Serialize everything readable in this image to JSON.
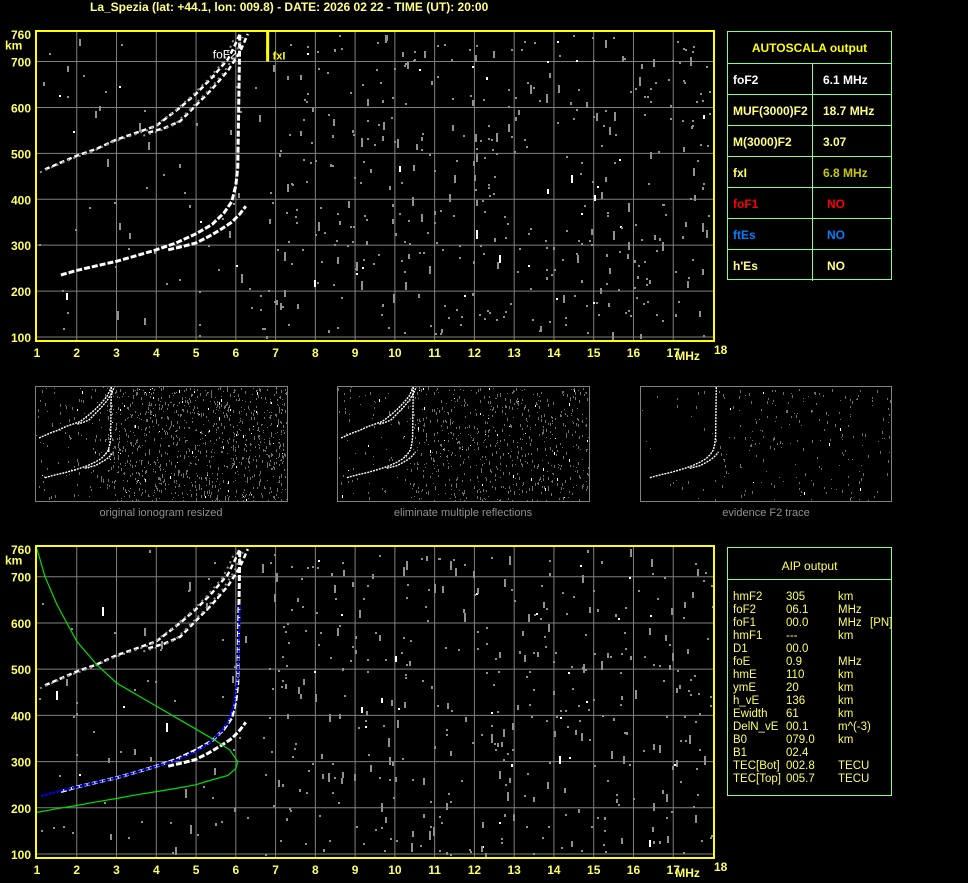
{
  "header": {
    "title": "La_Spezia (lat: +44.1, lon: 009.8) - DATE: 2026 02 22 - TIME (UT): 20:00"
  },
  "colors": {
    "axis": "#ffff00",
    "grid": "#808080",
    "table_border": "#80ff80",
    "profile": "#00e000",
    "fit": "#0000ff",
    "fof1": "#ff0000",
    "ftes": "#0080ff",
    "fxl": "#c0c000"
  },
  "autoscala": {
    "title": "AUTOSCALA output",
    "rows": [
      {
        "label": "foF2",
        "value": "6.1 MHz",
        "color": "#ffffff"
      },
      {
        "label": "MUF(3000)F2",
        "value": "18.7 MHz",
        "color": "#ffff80"
      },
      {
        "label": "M(3000)F2",
        "value": "3.07",
        "color": "#ffff80"
      },
      {
        "label": "fxI",
        "value": "6.8 MHz",
        "color": "#c8c800"
      },
      {
        "label": "foF1",
        "value": "NO",
        "color": "#ff0000"
      },
      {
        "label": "ftEs",
        "value": "NO",
        "color": "#0080ff"
      },
      {
        "label": "h'Es",
        "value": "NO",
        "color": "#ffff80"
      }
    ]
  },
  "aip": {
    "title": "AIP output",
    "rows": [
      {
        "name": "hmF2",
        "value": "305",
        "unit": "km",
        "note": ""
      },
      {
        "name": "foF2",
        "value": "06.1",
        "unit": "MHz",
        "note": ""
      },
      {
        "name": "foF1",
        "value": "00.0",
        "unit": "MHz",
        "note": "[PN]"
      },
      {
        "name": "hmF1",
        "value": "---",
        "unit": "km",
        "note": ""
      },
      {
        "name": "D1",
        "value": "00.0",
        "unit": "",
        "note": ""
      },
      {
        "name": "foE",
        "value": "0.9",
        "unit": "MHz",
        "note": ""
      },
      {
        "name": "hmE",
        "value": "110",
        "unit": "km",
        "note": ""
      },
      {
        "name": "ymE",
        "value": "20",
        "unit": "km",
        "note": ""
      },
      {
        "name": "h_vE",
        "value": "136",
        "unit": "km",
        "note": ""
      },
      {
        "name": "Ewidth",
        "value": "61",
        "unit": "km",
        "note": ""
      },
      {
        "name": "DelN_vE",
        "value": "00.1",
        "unit": "m^(-3)",
        "note": ""
      },
      {
        "name": "B0",
        "value": "079.0",
        "unit": "km",
        "note": ""
      },
      {
        "name": "B1",
        "value": "02.4",
        "unit": "",
        "note": ""
      },
      {
        "name": "TEC[Bot]",
        "value": "002.8",
        "unit": "TECU",
        "note": ""
      },
      {
        "name": "TEC[Top]",
        "value": "005.7",
        "unit": "TECU",
        "note": ""
      }
    ]
  },
  "thumbnails": [
    {
      "caption": "original ionogram resized"
    },
    {
      "caption": "eliminate multiple reflections"
    },
    {
      "caption": "evidence F2 trace"
    }
  ],
  "chart_data": [
    {
      "type": "scatter",
      "title": "",
      "xlabel": "MHz",
      "ylabel": "km",
      "xlim": [
        1,
        18
      ],
      "ylim": [
        100,
        760
      ],
      "xticks": [
        "1",
        "2",
        "3",
        "4",
        "5",
        "6",
        "7",
        "8",
        "9",
        "10",
        "11",
        "12",
        "13",
        "14",
        "15",
        "16",
        "17",
        "18"
      ],
      "yticks": [
        "100",
        "200",
        "300",
        "400",
        "500",
        "600",
        "700",
        "760"
      ],
      "grid": true,
      "annotations": [
        {
          "text": "foF2",
          "x": 6.1
        },
        {
          "text": "fxI",
          "x": 6.8
        }
      ],
      "series": [
        {
          "kind": "o-trace",
          "x": [
            1.6,
            2,
            2.5,
            3,
            3.5,
            4,
            4.5,
            5,
            5.4,
            5.7,
            5.9,
            6.0,
            6.05,
            6.1
          ],
          "y": [
            235,
            245,
            255,
            265,
            277,
            290,
            305,
            325,
            345,
            370,
            395,
            430,
            470,
            760
          ]
        },
        {
          "kind": "x-trace",
          "x": [
            4.3,
            4.7,
            5,
            5.3,
            5.6,
            5.9,
            6.1,
            6.25
          ],
          "y": [
            290,
            298,
            305,
            318,
            333,
            350,
            368,
            385
          ]
        },
        {
          "kind": "o-trace-2hop",
          "x": [
            1.2,
            1.6,
            2,
            2.5,
            3,
            3.5,
            4,
            4.3,
            4.6,
            5,
            5.4,
            5.8,
            6.0,
            6.1
          ],
          "y": [
            465,
            480,
            495,
            510,
            530,
            545,
            560,
            580,
            600,
            630,
            665,
            705,
            740,
            760
          ]
        },
        {
          "kind": "x-trace-2hop",
          "x": [
            3.8,
            4.2,
            4.6,
            5,
            5.4,
            5.8,
            6.1,
            6.3
          ],
          "y": [
            545,
            555,
            570,
            605,
            640,
            680,
            720,
            760
          ]
        }
      ]
    },
    {
      "type": "scatter",
      "title": "",
      "xlabel": "MHz",
      "ylabel": "km",
      "xlim": [
        1,
        18
      ],
      "ylim": [
        100,
        760
      ],
      "xticks": [
        "1",
        "2",
        "3",
        "4",
        "5",
        "6",
        "7",
        "8",
        "9",
        "10",
        "11",
        "12",
        "13",
        "14",
        "15",
        "16",
        "17",
        "18"
      ],
      "yticks": [
        "100",
        "200",
        "300",
        "400",
        "500",
        "600",
        "700",
        "760"
      ],
      "grid": true,
      "series": [
        {
          "kind": "o-trace",
          "x": [
            1.6,
            2,
            2.5,
            3,
            3.5,
            4,
            4.5,
            5,
            5.4,
            5.7,
            5.9,
            6.0,
            6.05,
            6.1
          ],
          "y": [
            235,
            245,
            255,
            265,
            277,
            290,
            305,
            325,
            345,
            370,
            395,
            430,
            470,
            760
          ]
        },
        {
          "kind": "x-trace",
          "x": [
            4.3,
            4.7,
            5,
            5.3,
            5.6,
            5.9,
            6.1,
            6.25
          ],
          "y": [
            290,
            298,
            305,
            318,
            333,
            350,
            368,
            385
          ]
        },
        {
          "kind": "o-trace-2hop",
          "x": [
            1.2,
            1.6,
            2,
            2.5,
            3,
            3.5,
            4,
            4.3,
            4.6,
            5,
            5.4,
            5.8,
            6.0,
            6.1
          ],
          "y": [
            465,
            480,
            495,
            510,
            530,
            545,
            560,
            580,
            600,
            630,
            665,
            705,
            740,
            760
          ]
        },
        {
          "kind": "x-trace-2hop",
          "x": [
            3.8,
            4.2,
            4.6,
            5,
            5.4,
            5.8,
            6.1,
            6.3
          ],
          "y": [
            545,
            555,
            570,
            605,
            640,
            680,
            720,
            760
          ]
        },
        {
          "kind": "aip-fit",
          "x": [
            1.1,
            1.5,
            2,
            2.5,
            3,
            3.5,
            4,
            4.5,
            5,
            5.3,
            5.6,
            5.8,
            5.95,
            6.0,
            6.05,
            6.1
          ],
          "y": [
            225,
            235,
            245,
            255,
            265,
            277,
            290,
            303,
            322,
            338,
            362,
            385,
            420,
            450,
            480,
            640
          ]
        },
        {
          "kind": "density-profile",
          "x": [
            1.0,
            1.2,
            1.5,
            2,
            2.5,
            3,
            3.5,
            4,
            4.5,
            5,
            5.5,
            5.85,
            6.05,
            6.0,
            5.8,
            5.3,
            5,
            4.5,
            4,
            3.5,
            3,
            2.5,
            2,
            1.5,
            1.0
          ],
          "y": [
            760,
            700,
            640,
            560,
            510,
            470,
            445,
            420,
            395,
            370,
            345,
            325,
            300,
            285,
            270,
            258,
            250,
            242,
            235,
            228,
            220,
            213,
            205,
            198,
            190
          ]
        }
      ]
    }
  ]
}
